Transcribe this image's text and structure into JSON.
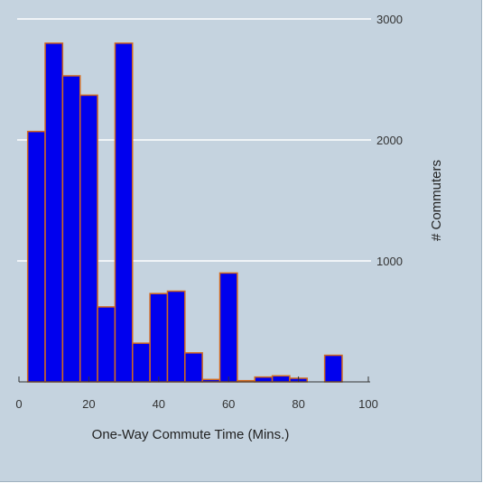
{
  "chart_data": {
    "type": "bar",
    "title": "",
    "xlabel": "One-Way Commute Time (Mins.)",
    "ylabel": "# Commuters",
    "x_ticks": [
      0,
      20,
      40,
      60,
      80,
      100
    ],
    "y_ticks": [
      1000,
      2000,
      3000
    ],
    "xlim": [
      0,
      100
    ],
    "ylim": [
      0,
      3000
    ],
    "grid": true,
    "y_axis_side": "right",
    "bin_width": 5,
    "bins": [
      {
        "start": 2.5,
        "value": 2070
      },
      {
        "start": 7.5,
        "value": 2800
      },
      {
        "start": 12.5,
        "value": 2530
      },
      {
        "start": 17.5,
        "value": 2370
      },
      {
        "start": 22.5,
        "value": 620
      },
      {
        "start": 27.5,
        "value": 2800
      },
      {
        "start": 32.5,
        "value": 320
      },
      {
        "start": 37.5,
        "value": 730
      },
      {
        "start": 42.5,
        "value": 750
      },
      {
        "start": 47.5,
        "value": 240
      },
      {
        "start": 52.5,
        "value": 20
      },
      {
        "start": 57.5,
        "value": 900
      },
      {
        "start": 62.5,
        "value": 10
      },
      {
        "start": 67.5,
        "value": 40
      },
      {
        "start": 72.5,
        "value": 50
      },
      {
        "start": 77.5,
        "value": 30
      },
      {
        "start": 87.5,
        "value": 220
      }
    ],
    "colors": {
      "bar_fill": "#0000ee",
      "bar_stroke": "#d2691e",
      "grid": "#ffffff",
      "axis": "#333333",
      "background": "#c5d3df"
    }
  }
}
